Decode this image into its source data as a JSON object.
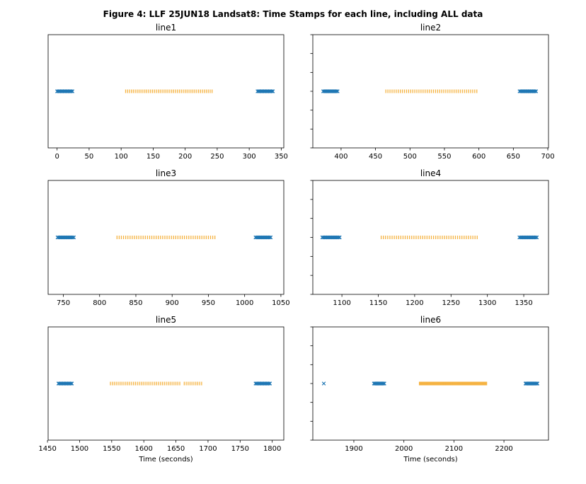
{
  "figure": {
    "title": "Figure 4: LLF 25JUN18  Landsat8: Time Stamps for each line, including ALL data"
  },
  "colors": {
    "blue_marker": "#1f77b4",
    "orange_marker": "#f5b342"
  },
  "chart_data": [
    {
      "type": "scatter",
      "title": "line1",
      "xlabel": "",
      "xlim": [
        -14,
        354
      ],
      "xticks": [
        0,
        50,
        100,
        150,
        200,
        250,
        300,
        350
      ],
      "xtick_labels": [
        "0",
        "50",
        "100",
        "150",
        "200",
        "250",
        "300",
        "350"
      ],
      "yticks_shown": false,
      "series": [
        {
          "marker": "x",
          "color": "blue",
          "ranges": [
            [
              0,
              24
            ],
            [
              313,
              337
            ]
          ],
          "step": 1.5
        },
        {
          "marker": "|",
          "color": "orange",
          "ranges": [
            [
              107,
              242
            ]
          ],
          "step": 3
        }
      ]
    },
    {
      "type": "scatter",
      "title": "line2",
      "xlabel": "",
      "xlim": [
        359,
        701
      ],
      "xticks": [
        400,
        450,
        500,
        550,
        600,
        650,
        700
      ],
      "xtick_labels": [
        "400",
        "450",
        "500",
        "550",
        "600",
        "650",
        "700"
      ],
      "yticks_shown": true,
      "series": [
        {
          "marker": "x",
          "color": "blue",
          "ranges": [
            [
              374,
              396
            ],
            [
              659,
              684
            ]
          ],
          "step": 1.5
        },
        {
          "marker": "|",
          "color": "orange",
          "ranges": [
            [
              465,
              598
            ]
          ],
          "step": 3
        }
      ]
    },
    {
      "type": "scatter",
      "title": "line3",
      "xlabel": "",
      "xlim": [
        729,
        1054
      ],
      "xticks": [
        750,
        800,
        850,
        900,
        950,
        1000,
        1050
      ],
      "xtick_labels": [
        "750",
        "800",
        "850",
        "900",
        "950",
        "1000",
        "1050"
      ],
      "yticks_shown": false,
      "series": [
        {
          "marker": "x",
          "color": "blue",
          "ranges": [
            [
              742,
              765
            ],
            [
              1015,
              1037
            ]
          ],
          "step": 1.5
        },
        {
          "marker": "|",
          "color": "orange",
          "ranges": [
            [
              824,
              960
            ]
          ],
          "step": 3
        }
      ]
    },
    {
      "type": "scatter",
      "title": "line4",
      "xlabel": "",
      "xlim": [
        1060,
        1384
      ],
      "xticks": [
        1100,
        1150,
        1200,
        1250,
        1300,
        1350
      ],
      "xtick_labels": [
        "1100",
        "1150",
        "1200",
        "1250",
        "1300",
        "1350"
      ],
      "yticks_shown": true,
      "series": [
        {
          "marker": "x",
          "color": "blue",
          "ranges": [
            [
              1073,
              1097
            ],
            [
              1344,
              1368
            ]
          ],
          "step": 1.5
        },
        {
          "marker": "|",
          "color": "orange",
          "ranges": [
            [
              1154,
              1288
            ]
          ],
          "step": 3
        }
      ]
    },
    {
      "type": "scatter",
      "title": "line5",
      "xlabel": "Time (seconds)",
      "xlim": [
        1451,
        1818
      ],
      "xticks": [
        1450,
        1500,
        1550,
        1600,
        1650,
        1700,
        1750,
        1800
      ],
      "xtick_labels": [
        "1450",
        "1500",
        "1550",
        "1600",
        "1650",
        "1700",
        "1750",
        "1800"
      ],
      "yticks_shown": false,
      "series": [
        {
          "marker": "x",
          "color": "blue",
          "ranges": [
            [
              1467,
              1488
            ],
            [
              1774,
              1797
            ]
          ],
          "step": 1.5
        },
        {
          "marker": "|",
          "color": "orange",
          "ranges": [
            [
              1548,
              1656
            ],
            [
              1663,
              1690
            ]
          ],
          "step": 3
        }
      ]
    },
    {
      "type": "scatter",
      "title": "line6",
      "xlabel": "Time (seconds)",
      "xlim": [
        1818,
        2289
      ],
      "xticks": [
        1900,
        2000,
        2100,
        2200
      ],
      "xtick_labels": [
        "1900",
        "2000",
        "2100",
        "2200"
      ],
      "yticks_shown": true,
      "series": [
        {
          "marker": "x",
          "color": "blue",
          "ranges": [
            [
              1840,
              1840
            ],
            [
              1940,
              1961
            ],
            [
              2243,
              2268
            ]
          ],
          "step": 1.5
        },
        {
          "marker": "|",
          "color": "orange",
          "ranges": [
            [
              2031,
              2166
            ]
          ],
          "step": 1.2
        }
      ]
    }
  ]
}
